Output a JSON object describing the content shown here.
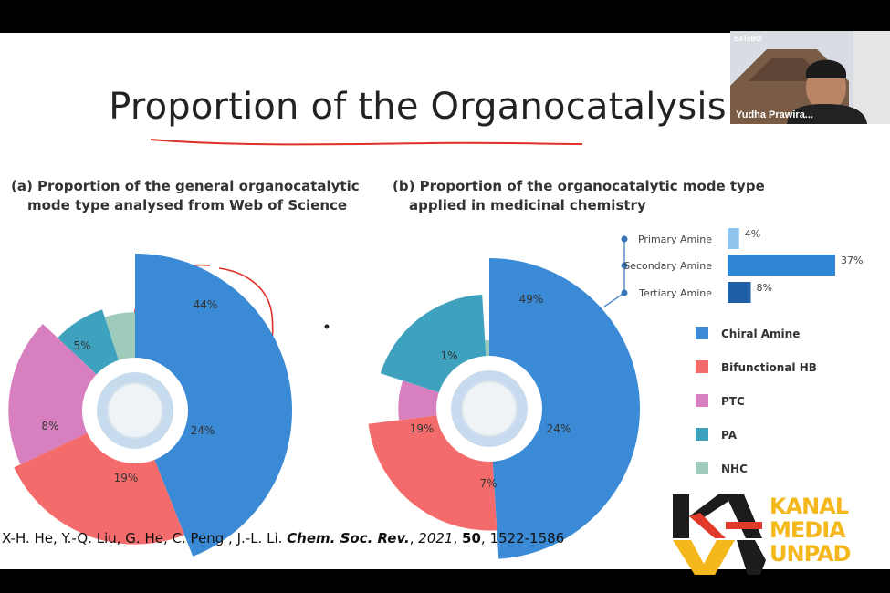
{
  "slide": {
    "title": "Proportion of the Organocatalysis",
    "citation": {
      "authors": "X-H. He, Y.-Q. Liu, G. He, C. Peng , J.-L. Li.",
      "journal": "Chem. Soc. Rev.",
      "year": "2021",
      "volume": "50",
      "pages": "1522-1586"
    }
  },
  "chart_data": [
    {
      "type": "pie",
      "title_line1": "(a) Proportion of the general organocatalytic",
      "title_line2": "mode type analysed from Web of Science",
      "slices": [
        {
          "label": "Chiral Amine",
          "value": 44,
          "text": "44%"
        },
        {
          "label": "Bifunctional HB",
          "value": 24,
          "text": "24%"
        },
        {
          "label": "PTC",
          "value": 19,
          "text": "19%"
        },
        {
          "label": "PA",
          "value": 8,
          "text": "8%"
        },
        {
          "label": "NHC",
          "value": 5,
          "text": "5%"
        }
      ]
    },
    {
      "type": "pie",
      "title_line1": "(b) Proportion of the organocatalytic mode type",
      "title_line2": "applied in medicinal chemistry",
      "slices": [
        {
          "label": "Chiral Amine",
          "value": 49,
          "text": "49%"
        },
        {
          "label": "Bifunctional HB",
          "value": 24,
          "text": "24%"
        },
        {
          "label": "PTC",
          "value": 7,
          "text": "7%"
        },
        {
          "label": "PA",
          "value": 19,
          "text": "19%"
        },
        {
          "label": "NHC",
          "value": 1,
          "text": "1%"
        }
      ],
      "sub_breakdown": {
        "type": "bar",
        "categories": [
          "Primary Amine",
          "Secondary Amine",
          "Tertiary Amine"
        ],
        "values": [
          4,
          37,
          8
        ],
        "texts": [
          "4%",
          "37%",
          "8%"
        ],
        "colors": [
          "#8ec4ee",
          "#2f86d4",
          "#1e5fa8"
        ]
      }
    }
  ],
  "legend": [
    {
      "label": "Chiral Amine",
      "color": "#3a8ad6"
    },
    {
      "label": "Bifunctional HB",
      "color": "#f46b6b"
    },
    {
      "label": "PTC",
      "color": "#d77fbf"
    },
    {
      "label": "PA",
      "color": "#3ea2bf"
    },
    {
      "label": "NHC",
      "color": "#9fcbbd"
    }
  ],
  "video_tile": {
    "name": "Yudha Prawira...",
    "logo_text": "SaTeBO"
  },
  "watermark": {
    "line1": "KANAL",
    "line2": "MEDIA",
    "line3": "UNPAD"
  }
}
